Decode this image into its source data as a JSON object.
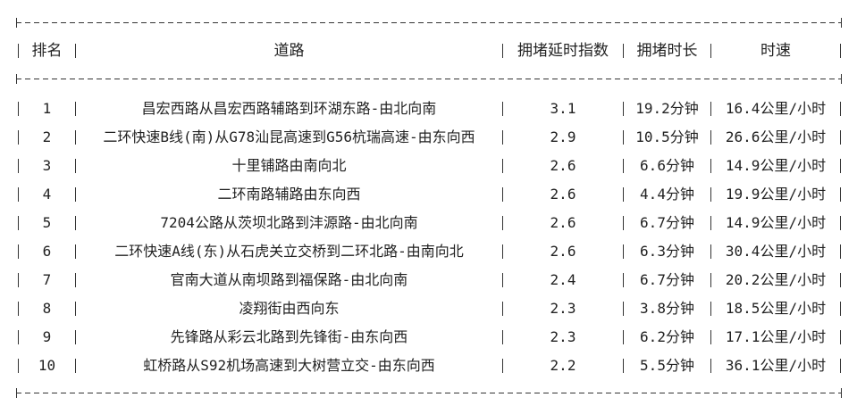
{
  "table": {
    "headers": [
      "排名",
      "道路",
      "拥堵延时指数",
      "拥堵时长",
      "时速"
    ],
    "rows": [
      [
        "1",
        "昌宏西路从昌宏西路辅路到环湖东路-由北向南",
        "3.1",
        "19.2分钟",
        "16.4公里/小时"
      ],
      [
        "2",
        "二环快速B线(南)从G78汕昆高速到G56杭瑞高速-由东向西",
        "2.9",
        "10.5分钟",
        "26.6公里/小时"
      ],
      [
        "3",
        "十里铺路由南向北",
        "2.6",
        "6.6分钟",
        "14.9公里/小时"
      ],
      [
        "4",
        "二环南路辅路由东向西",
        "2.6",
        "4.4分钟",
        "19.9公里/小时"
      ],
      [
        "5",
        "7204公路从茨坝北路到沣源路-由北向南",
        "2.6",
        "6.7分钟",
        "14.9公里/小时"
      ],
      [
        "6",
        "二环快速A线(东)从石虎关立交桥到二环北路-由南向北",
        "2.6",
        "6.3分钟",
        "30.4公里/小时"
      ],
      [
        "7",
        "官南大道从南坝路到福保路-由北向南",
        "2.4",
        "6.7分钟",
        "20.2公里/小时"
      ],
      [
        "8",
        "凌翔街由西向东",
        "2.3",
        "3.8分钟",
        "18.5公里/小时"
      ],
      [
        "9",
        "先锋路从彩云北路到先锋街-由东向西",
        "2.3",
        "6.2分钟",
        "17.1公里/小时"
      ],
      [
        "10",
        "虹桥路从S92机场高速到大树营立交-由东向西",
        "2.2",
        "5.5分钟",
        "36.1公里/小时"
      ]
    ]
  }
}
